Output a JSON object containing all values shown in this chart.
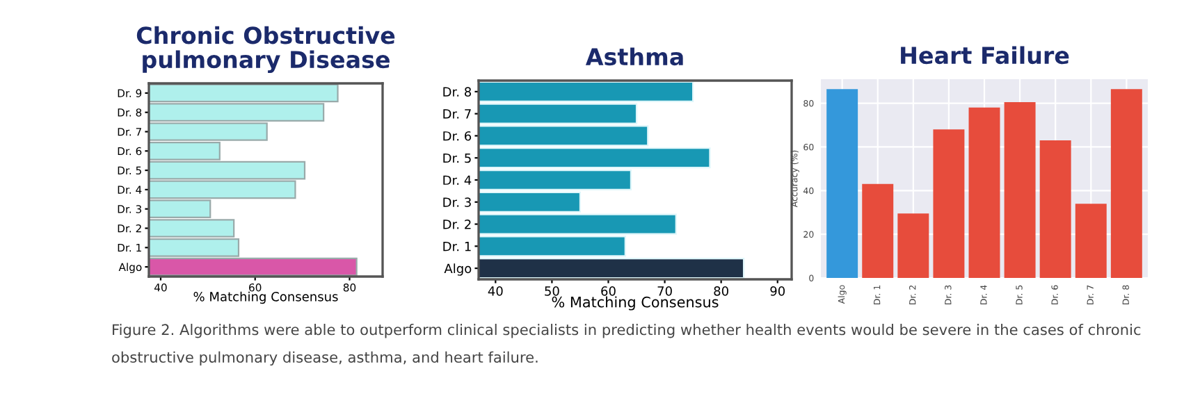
{
  "chart_data": [
    {
      "type": "bar",
      "orientation": "horizontal",
      "title": "Chronic Obstructive\npulmonary Disease",
      "xlabel": "% Matching Consensus",
      "categories": [
        "Dr. 9",
        "Dr. 8",
        "Dr. 7",
        "Dr. 6",
        "Dr. 5",
        "Dr. 4",
        "Dr. 3",
        "Dr. 2",
        "Dr. 1",
        "Algo"
      ],
      "values": [
        77.5,
        74.5,
        62.5,
        52.5,
        70.5,
        68.5,
        50.5,
        55.5,
        56.5,
        81.5
      ],
      "colors": [
        "#aff0ec",
        "#aff0ec",
        "#aff0ec",
        "#aff0ec",
        "#aff0ec",
        "#aff0ec",
        "#aff0ec",
        "#aff0ec",
        "#aff0ec",
        "#d957a8"
      ],
      "xlim": [
        37.5,
        87
      ],
      "xticks": [
        40,
        60,
        80
      ],
      "grid": false,
      "annotations": [
        "Figure 2. Algorithms were able to outperform clinical specialists in predicting whether health events would be severe in the cases of chronic obstructive pulmonary disease, asthma, and heart failure."
      ]
    },
    {
      "type": "bar",
      "orientation": "horizontal",
      "title": "Asthma",
      "xlabel": "% Matching Consensus",
      "categories": [
        "Dr. 8",
        "Dr. 7",
        "Dr. 6",
        "Dr. 5",
        "Dr. 4",
        "Dr. 3",
        "Dr. 2",
        "Dr. 1",
        "Algo"
      ],
      "values": [
        75,
        65,
        67,
        78,
        64,
        55,
        72,
        63,
        84
      ],
      "colors": [
        "#1898b4",
        "#1898b4",
        "#1898b4",
        "#1898b4",
        "#1898b4",
        "#1898b4",
        "#1898b4",
        "#1898b4",
        "#1f3147"
      ],
      "xlim": [
        37,
        92.5
      ],
      "xticks": [
        40,
        50,
        60,
        70,
        80,
        90
      ],
      "grid": false
    },
    {
      "type": "bar",
      "title": "Heart Failure",
      "ylabel": "Accuracy (%)",
      "categories": [
        "Algo",
        "Dr. 1",
        "Dr. 2",
        "Dr. 3",
        "Dr. 4",
        "Dr. 5",
        "Dr. 6",
        "Dr. 7",
        "Dr. 8"
      ],
      "values": [
        86.5,
        43,
        29.5,
        68,
        78,
        80.5,
        63,
        34,
        86.5
      ],
      "colors": [
        "#3498db",
        "#e74c3c",
        "#e74c3c",
        "#e74c3c",
        "#e74c3c",
        "#e74c3c",
        "#e74c3c",
        "#e74c3c",
        "#e74c3c"
      ],
      "ylim": [
        0,
        91
      ],
      "yticks": [
        0,
        20,
        40,
        60,
        80
      ],
      "grid": true
    }
  ]
}
